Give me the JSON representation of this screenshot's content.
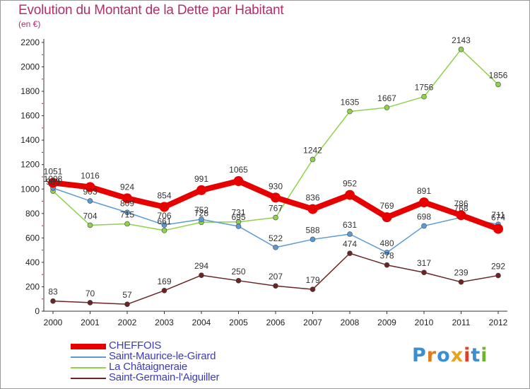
{
  "chart_data": {
    "type": "line",
    "title": "Evolution du Montant de la Dette par Habitant",
    "subtitle": "(en €)",
    "xlabel": "",
    "ylabel": "",
    "x": [
      "2000",
      "2001",
      "2002",
      "2003",
      "2004",
      "2005",
      "2006",
      "2007",
      "2008",
      "2009",
      "2010",
      "2011",
      "2012"
    ],
    "ylim": [
      0,
      2200
    ],
    "yticks": [
      0,
      200,
      400,
      600,
      800,
      1000,
      1200,
      1400,
      1600,
      1800,
      2000,
      2200
    ],
    "grid": false,
    "legend_position": "bottom-left",
    "series": [
      {
        "name": "CHEFFOIS",
        "color": "#e60000",
        "values": [
          1051,
          1016,
          924,
          854,
          991,
          1065,
          930,
          836,
          952,
          769,
          891,
          786,
          674
        ]
      },
      {
        "name": "Saint-Maurice-le-Girard",
        "color": "#5b9bd5",
        "values": [
          1008,
          903,
          809,
          706,
          752,
          695,
          522,
          588,
          631,
          480,
          698,
          768,
          711
        ]
      },
      {
        "name": "La Châtaigneraie",
        "color": "#8ed14a",
        "values": [
          983,
          704,
          715,
          661,
          728,
          731,
          767,
          1242,
          1635,
          1667,
          1756,
          2143,
          1856
        ]
      },
      {
        "name": "Saint-Germain-l'Aiguiller",
        "color": "#6b2424",
        "values": [
          83,
          70,
          57,
          169,
          294,
          250,
          207,
          179,
          474,
          378,
          317,
          239,
          292
        ]
      }
    ],
    "labels": [
      [
        "1051",
        "1016",
        "924",
        "854",
        "991",
        "1065",
        "930",
        "836",
        "952",
        "769",
        "891",
        "786",
        "674"
      ],
      [
        "1008",
        "903",
        "809",
        "706",
        "752",
        "695",
        "522",
        "588",
        "631",
        "480",
        "698",
        "768",
        "711"
      ],
      [
        "983",
        "704",
        "715",
        "661",
        "728",
        "731",
        "767",
        "1242",
        "1635",
        "1667",
        "1756",
        "2143",
        "1856"
      ],
      [
        "83",
        "70",
        "57",
        "169",
        "294",
        "250",
        "207",
        "179",
        "474",
        "378",
        "317",
        "239",
        "292"
      ]
    ]
  },
  "logo": {
    "letters": [
      "P",
      "r",
      "o",
      "x",
      "i",
      "t",
      "i"
    ]
  }
}
